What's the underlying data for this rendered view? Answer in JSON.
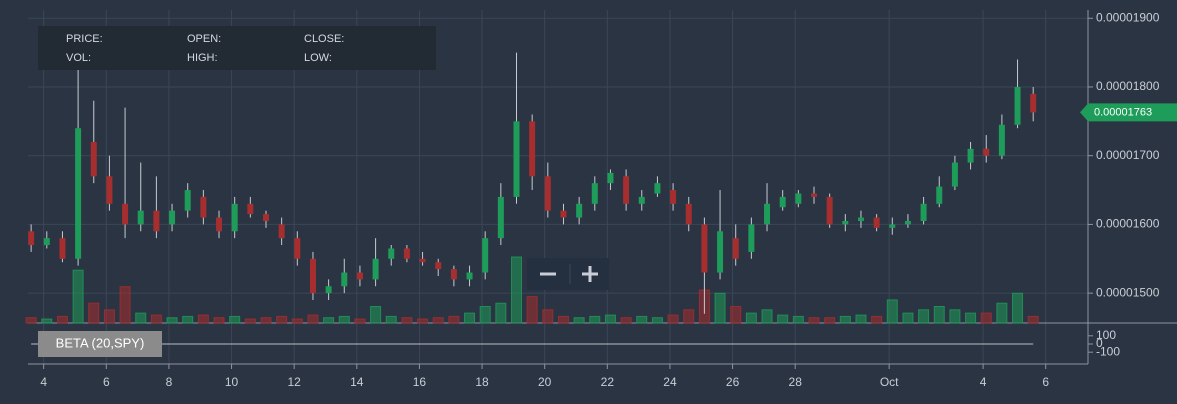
{
  "info_panel": {
    "price": "PRICE:",
    "open": "OPEN:",
    "close": "CLOSE:",
    "vol": "VOL:",
    "high": "HIGH:",
    "low": "LOW:"
  },
  "chart_data": [
    {
      "type": "candlestick",
      "up_color": "#1e9c5a",
      "down_color": "#a62e2e",
      "grid": true,
      "xlim": [
        3.5,
        37.35
      ],
      "xticks": [
        4,
        6,
        8,
        10,
        12,
        14,
        16,
        18,
        20,
        22,
        24,
        26,
        28,
        {
          "value": 31,
          "label": "Oct"
        },
        {
          "value": 34,
          "label": "4"
        },
        {
          "value": 36,
          "label": "6"
        }
      ],
      "ylim": [
        1.458e-05,
        1.912e-05
      ],
      "yticks": [
        {
          "value": 1.5e-05,
          "label": "0.00001500"
        },
        {
          "value": 1.6e-05,
          "label": "0.00001600"
        },
        {
          "value": 1.7e-05,
          "label": "0.00001700"
        },
        {
          "value": 1.8e-05,
          "label": "0.00001800"
        },
        {
          "value": 1.9e-05,
          "label": "0.00001900"
        }
      ],
      "volume_lim": [
        0,
        100
      ],
      "x": [
        3.6,
        4.1,
        4.6,
        5.1,
        5.6,
        6.1,
        6.6,
        7.1,
        7.6,
        8.1,
        8.6,
        9.1,
        9.6,
        10.1,
        10.6,
        11.1,
        11.6,
        12.1,
        12.6,
        13.1,
        13.6,
        14.1,
        14.6,
        15.1,
        15.6,
        16.1,
        16.6,
        17.1,
        17.6,
        18.1,
        18.6,
        19.1,
        19.6,
        20.1,
        20.6,
        21.1,
        21.6,
        22.1,
        22.6,
        23.1,
        23.6,
        24.1,
        24.6,
        25.1,
        25.6,
        26.1,
        26.6,
        27.1,
        27.6,
        28.1,
        28.6,
        29.1,
        29.6,
        30.1,
        30.6,
        31.1,
        31.6,
        32.1,
        32.6,
        33.1,
        33.6,
        34.1,
        34.6,
        35.1,
        35.6
      ],
      "open": [
        1.59e-05,
        1.57e-05,
        1.58e-05,
        1.55e-05,
        1.72e-05,
        1.67e-05,
        1.63e-05,
        1.6e-05,
        1.62e-05,
        1.6e-05,
        1.62e-05,
        1.64e-05,
        1.61e-05,
        1.59e-05,
        1.63e-05,
        1.615e-05,
        1.6e-05,
        1.58e-05,
        1.55e-05,
        1.5e-05,
        1.51e-05,
        1.53e-05,
        1.52e-05,
        1.55e-05,
        1.565e-05,
        1.55e-05,
        1.545e-05,
        1.535e-05,
        1.52e-05,
        1.53e-05,
        1.58e-05,
        1.64e-05,
        1.75e-05,
        1.67e-05,
        1.62e-05,
        1.61e-05,
        1.63e-05,
        1.66e-05,
        1.67e-05,
        1.63e-05,
        1.645e-05,
        1.65e-05,
        1.63e-05,
        1.6e-05,
        1.53e-05,
        1.58e-05,
        1.56e-05,
        1.6e-05,
        1.625e-05,
        1.63e-05,
        1.645e-05,
        1.64e-05,
        1.6e-05,
        1.605e-05,
        1.61e-05,
        1.595e-05,
        1.6e-05,
        1.605e-05,
        1.63e-05,
        1.655e-05,
        1.69e-05,
        1.71e-05,
        1.7e-05,
        1.745e-05,
        1.79e-05
      ],
      "high": [
        1.6e-05,
        1.59e-05,
        1.59e-05,
        1.84e-05,
        1.78e-05,
        1.7e-05,
        1.77e-05,
        1.69e-05,
        1.67e-05,
        1.63e-05,
        1.66e-05,
        1.65e-05,
        1.62e-05,
        1.64e-05,
        1.64e-05,
        1.62e-05,
        1.61e-05,
        1.59e-05,
        1.56e-05,
        1.52e-05,
        1.55e-05,
        1.54e-05,
        1.58e-05,
        1.57e-05,
        1.57e-05,
        1.56e-05,
        1.55e-05,
        1.54e-05,
        1.54e-05,
        1.59e-05,
        1.66e-05,
        1.85e-05,
        1.76e-05,
        1.69e-05,
        1.63e-05,
        1.64e-05,
        1.67e-05,
        1.68e-05,
        1.68e-05,
        1.65e-05,
        1.67e-05,
        1.66e-05,
        1.64e-05,
        1.61e-05,
        1.65e-05,
        1.6e-05,
        1.61e-05,
        1.66e-05,
        1.65e-05,
        1.65e-05,
        1.655e-05,
        1.645e-05,
        1.615e-05,
        1.62e-05,
        1.615e-05,
        1.61e-05,
        1.615e-05,
        1.64e-05,
        1.67e-05,
        1.7e-05,
        1.72e-05,
        1.73e-05,
        1.76e-05,
        1.84e-05,
        1.8e-05
      ],
      "low": [
        1.56e-05,
        1.565e-05,
        1.545e-05,
        1.54e-05,
        1.66e-05,
        1.62e-05,
        1.58e-05,
        1.59e-05,
        1.58e-05,
        1.59e-05,
        1.61e-05,
        1.6e-05,
        1.58e-05,
        1.58e-05,
        1.61e-05,
        1.595e-05,
        1.57e-05,
        1.54e-05,
        1.49e-05,
        1.49e-05,
        1.5e-05,
        1.51e-05,
        1.51e-05,
        1.54e-05,
        1.545e-05,
        1.54e-05,
        1.525e-05,
        1.51e-05,
        1.51e-05,
        1.52e-05,
        1.57e-05,
        1.63e-05,
        1.65e-05,
        1.61e-05,
        1.6e-05,
        1.6e-05,
        1.62e-05,
        1.65e-05,
        1.62e-05,
        1.62e-05,
        1.64e-05,
        1.62e-05,
        1.59e-05,
        1.47e-05,
        1.52e-05,
        1.54e-05,
        1.55e-05,
        1.59e-05,
        1.62e-05,
        1.625e-05,
        1.63e-05,
        1.595e-05,
        1.59e-05,
        1.595e-05,
        1.59e-05,
        1.585e-05,
        1.595e-05,
        1.6e-05,
        1.625e-05,
        1.65e-05,
        1.68e-05,
        1.69e-05,
        1.695e-05,
        1.74e-05,
        1.75e-05
      ],
      "close": [
        1.57e-05,
        1.58e-05,
        1.55e-05,
        1.74e-05,
        1.67e-05,
        1.63e-05,
        1.6e-05,
        1.62e-05,
        1.59e-05,
        1.62e-05,
        1.65e-05,
        1.61e-05,
        1.59e-05,
        1.63e-05,
        1.615e-05,
        1.605e-05,
        1.58e-05,
        1.55e-05,
        1.5e-05,
        1.51e-05,
        1.53e-05,
        1.52e-05,
        1.55e-05,
        1.565e-05,
        1.55e-05,
        1.545e-05,
        1.535e-05,
        1.52e-05,
        1.53e-05,
        1.58e-05,
        1.64e-05,
        1.75e-05,
        1.67e-05,
        1.62e-05,
        1.61e-05,
        1.63e-05,
        1.66e-05,
        1.675e-05,
        1.63e-05,
        1.64e-05,
        1.66e-05,
        1.63e-05,
        1.6e-05,
        1.53e-05,
        1.59e-05,
        1.55e-05,
        1.6e-05,
        1.63e-05,
        1.64e-05,
        1.645e-05,
        1.64e-05,
        1.6e-05,
        1.605e-05,
        1.61e-05,
        1.595e-05,
        1.6e-05,
        1.605e-05,
        1.63e-05,
        1.655e-05,
        1.69e-05,
        1.71e-05,
        1.7e-05,
        1.745e-05,
        1.8e-05,
        1.763e-05
      ],
      "volume": [
        8,
        6,
        10,
        80,
        30,
        20,
        55,
        15,
        12,
        8,
        10,
        12,
        8,
        10,
        6,
        8,
        10,
        6,
        12,
        8,
        10,
        6,
        25,
        10,
        8,
        6,
        8,
        10,
        15,
        25,
        30,
        100,
        40,
        20,
        10,
        8,
        10,
        12,
        8,
        10,
        8,
        12,
        20,
        50,
        45,
        25,
        15,
        20,
        12,
        10,
        8,
        8,
        10,
        12,
        10,
        35,
        15,
        20,
        25,
        20,
        15,
        15,
        30,
        45,
        10
      ]
    },
    {
      "type": "line",
      "title": "BETA (20,SPY)",
      "color": "#b8bec6",
      "x": [
        3.6,
        35.6
      ],
      "values": [
        0,
        0
      ],
      "ylim": [
        -220,
        220
      ],
      "yticks": [
        100,
        0,
        -100
      ]
    }
  ]
}
